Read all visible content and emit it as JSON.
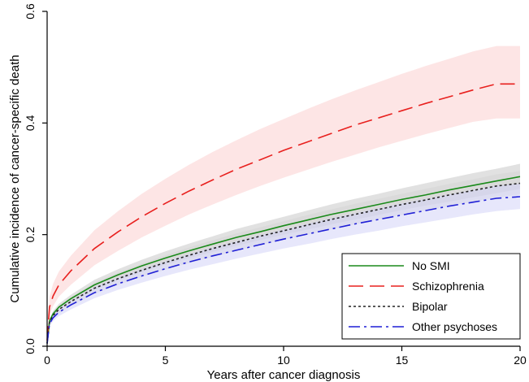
{
  "chart_data": {
    "type": "line",
    "title": "",
    "xlabel": "Years after cancer diagnosis",
    "ylabel": "Cumulative incidence of cancer-specific death",
    "xlim": [
      0,
      20
    ],
    "ylim": [
      0,
      0.6
    ],
    "xticks": [
      0,
      5,
      10,
      15,
      20
    ],
    "xtick_labels": [
      "0",
      "5",
      "10",
      "15",
      "20"
    ],
    "yticks": [
      0,
      0.2,
      0.4,
      0.6
    ],
    "ytick_labels": [
      "0.0",
      "0.2",
      "0.4",
      "0.6"
    ],
    "grid": false,
    "legend_position": "bottom-right",
    "x": [
      0,
      0.1,
      0.25,
      0.5,
      1,
      2,
      3,
      4,
      5,
      6,
      7,
      8,
      9,
      10,
      11,
      12,
      13,
      14,
      15,
      16,
      17,
      18,
      19,
      20
    ],
    "series": [
      {
        "name": "No SMI",
        "color": "#1a8a1a",
        "dash": "solid",
        "band_color": "#c8c8c8",
        "values": [
          0.005,
          0.045,
          0.058,
          0.07,
          0.085,
          0.11,
          0.128,
          0.144,
          0.158,
          0.171,
          0.183,
          0.195,
          0.205,
          0.216,
          0.226,
          0.236,
          0.245,
          0.254,
          0.263,
          0.271,
          0.28,
          0.288,
          0.296,
          0.304
        ],
        "lower": [
          0.003,
          0.041,
          0.053,
          0.064,
          0.078,
          0.101,
          0.118,
          0.133,
          0.146,
          0.158,
          0.169,
          0.18,
          0.19,
          0.2,
          0.209,
          0.218,
          0.227,
          0.235,
          0.244,
          0.252,
          0.259,
          0.267,
          0.274,
          0.282
        ],
        "upper": [
          0.007,
          0.049,
          0.063,
          0.076,
          0.092,
          0.119,
          0.138,
          0.155,
          0.17,
          0.184,
          0.197,
          0.21,
          0.221,
          0.232,
          0.243,
          0.254,
          0.264,
          0.273,
          0.283,
          0.292,
          0.301,
          0.31,
          0.318,
          0.327
        ]
      },
      {
        "name": "Schizophrenia",
        "color": "#e8201e",
        "dash": "long-dash",
        "band_color": "#fbd0d0",
        "values": [
          0.01,
          0.07,
          0.09,
          0.11,
          0.135,
          0.175,
          0.205,
          0.232,
          0.256,
          0.278,
          0.298,
          0.317,
          0.334,
          0.351,
          0.366,
          0.381,
          0.396,
          0.409,
          0.422,
          0.435,
          0.447,
          0.459,
          0.47,
          0.47
        ],
        "lower": [
          0.006,
          0.055,
          0.072,
          0.089,
          0.11,
          0.145,
          0.171,
          0.195,
          0.216,
          0.236,
          0.254,
          0.271,
          0.287,
          0.302,
          0.316,
          0.33,
          0.343,
          0.356,
          0.368,
          0.38,
          0.391,
          0.402,
          0.408,
          0.408
        ],
        "upper": [
          0.014,
          0.088,
          0.112,
          0.134,
          0.162,
          0.208,
          0.242,
          0.273,
          0.3,
          0.325,
          0.348,
          0.369,
          0.389,
          0.407,
          0.425,
          0.442,
          0.458,
          0.473,
          0.488,
          0.502,
          0.515,
          0.528,
          0.538,
          0.538
        ]
      },
      {
        "name": "Bipolar",
        "color": "#222222",
        "dash": "dotted",
        "band_color": "#d6d6d6",
        "values": [
          0.005,
          0.043,
          0.055,
          0.066,
          0.08,
          0.104,
          0.121,
          0.136,
          0.15,
          0.163,
          0.175,
          0.186,
          0.197,
          0.207,
          0.217,
          0.227,
          0.236,
          0.245,
          0.254,
          0.262,
          0.271,
          0.279,
          0.287,
          0.292
        ],
        "lower": [
          0.003,
          0.038,
          0.049,
          0.059,
          0.072,
          0.094,
          0.11,
          0.124,
          0.137,
          0.149,
          0.16,
          0.171,
          0.181,
          0.191,
          0.2,
          0.209,
          0.218,
          0.227,
          0.235,
          0.243,
          0.251,
          0.259,
          0.266,
          0.272
        ],
        "upper": [
          0.007,
          0.048,
          0.061,
          0.073,
          0.088,
          0.114,
          0.132,
          0.148,
          0.163,
          0.177,
          0.19,
          0.202,
          0.213,
          0.224,
          0.235,
          0.245,
          0.255,
          0.264,
          0.273,
          0.282,
          0.291,
          0.299,
          0.308,
          0.314
        ]
      },
      {
        "name": "Other psychoses",
        "color": "#1f1fd6",
        "dash": "dash-dot",
        "band_color": "#d4d4f7",
        "values": [
          0.005,
          0.04,
          0.051,
          0.061,
          0.074,
          0.096,
          0.112,
          0.126,
          0.139,
          0.151,
          0.162,
          0.172,
          0.182,
          0.192,
          0.201,
          0.21,
          0.219,
          0.227,
          0.235,
          0.243,
          0.251,
          0.258,
          0.265,
          0.268
        ],
        "lower": [
          0.003,
          0.035,
          0.045,
          0.054,
          0.066,
          0.086,
          0.101,
          0.114,
          0.126,
          0.137,
          0.147,
          0.157,
          0.166,
          0.175,
          0.183,
          0.192,
          0.2,
          0.207,
          0.215,
          0.222,
          0.229,
          0.236,
          0.242,
          0.246
        ],
        "upper": [
          0.007,
          0.045,
          0.057,
          0.068,
          0.082,
          0.106,
          0.123,
          0.138,
          0.152,
          0.165,
          0.177,
          0.188,
          0.199,
          0.209,
          0.219,
          0.229,
          0.238,
          0.247,
          0.256,
          0.264,
          0.272,
          0.28,
          0.288,
          0.291
        ]
      }
    ]
  }
}
